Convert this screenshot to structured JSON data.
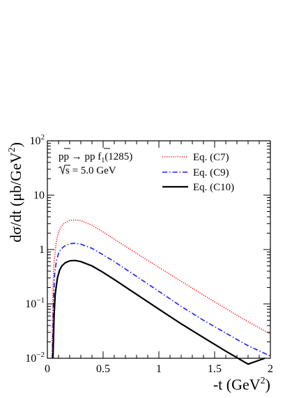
{
  "chart_data": {
    "type": "line",
    "log_y": true,
    "xlim": [
      0,
      2
    ],
    "ylim": [
      0.01,
      100
    ],
    "xlabel": "-t (GeV",
    "xlabel_sup": "2",
    "xlabel_close": ")",
    "ylabel": "dσ/dt (μb/GeV",
    "ylabel_sup": "2",
    "ylabel_close": ")",
    "x_ticks": [
      {
        "value": 0,
        "label": "0"
      },
      {
        "value": 0.5,
        "label": "0.5"
      },
      {
        "value": 1,
        "label": "1"
      },
      {
        "value": 1.5,
        "label": "1.5"
      },
      {
        "value": 2,
        "label": "2"
      }
    ],
    "y_ticks": [
      {
        "value": 0.01,
        "base": "10",
        "exp": "−2"
      },
      {
        "value": 0.1,
        "base": "10",
        "exp": "−1"
      },
      {
        "value": 1,
        "base": "1",
        "exp": ""
      },
      {
        "value": 10,
        "base": "10",
        "exp": ""
      },
      {
        "value": 100,
        "base": "10",
        "exp": "2"
      }
    ],
    "annotation": {
      "process_main": "pp → pp f",
      "process_sub": "1",
      "process_tail": "(1285)",
      "energy_value": "s = 5.0 GeV"
    },
    "legend_position": "top-right",
    "series": [
      {
        "name": "Eq. (C7)",
        "color": "#ff2020",
        "dash": "dotted",
        "x": [
          0.04,
          0.05,
          0.06,
          0.08,
          0.1,
          0.12,
          0.15,
          0.2,
          0.25,
          0.3,
          0.4,
          0.5,
          0.6,
          0.8,
          1.0,
          1.2,
          1.4,
          1.6,
          1.8,
          2.0
        ],
        "y": [
          0.01,
          0.2,
          0.6,
          1.4,
          2.1,
          2.6,
          3.05,
          3.45,
          3.5,
          3.4,
          2.8,
          2.1,
          1.55,
          0.85,
          0.47,
          0.26,
          0.145,
          0.082,
          0.047,
          0.028
        ]
      },
      {
        "name": "Eq. (C9)",
        "color": "#1a1aff",
        "dash": "dashdot",
        "x": [
          0.045,
          0.055,
          0.065,
          0.08,
          0.1,
          0.12,
          0.15,
          0.2,
          0.25,
          0.3,
          0.4,
          0.5,
          0.6,
          0.8,
          1.0,
          1.2,
          1.4,
          1.6,
          1.8,
          2.0
        ],
        "y": [
          0.01,
          0.12,
          0.35,
          0.6,
          0.85,
          1.0,
          1.15,
          1.28,
          1.3,
          1.25,
          1.05,
          0.8,
          0.6,
          0.32,
          0.17,
          0.09,
          0.05,
          0.029,
          0.017,
          0.011
        ]
      },
      {
        "name": "Eq. (C10)",
        "color": "#000000",
        "dash": "solid",
        "x": [
          0.05,
          0.06,
          0.07,
          0.09,
          0.11,
          0.13,
          0.16,
          0.2,
          0.25,
          0.3,
          0.4,
          0.5,
          0.6,
          0.8,
          1.0,
          1.2,
          1.4,
          1.6,
          1.8,
          1.95
        ],
        "y": [
          0.01,
          0.06,
          0.15,
          0.3,
          0.42,
          0.5,
          0.57,
          0.62,
          0.63,
          0.6,
          0.5,
          0.38,
          0.28,
          0.15,
          0.08,
          0.043,
          0.024,
          0.0135,
          0.0078,
          0.01
        ]
      }
    ]
  }
}
